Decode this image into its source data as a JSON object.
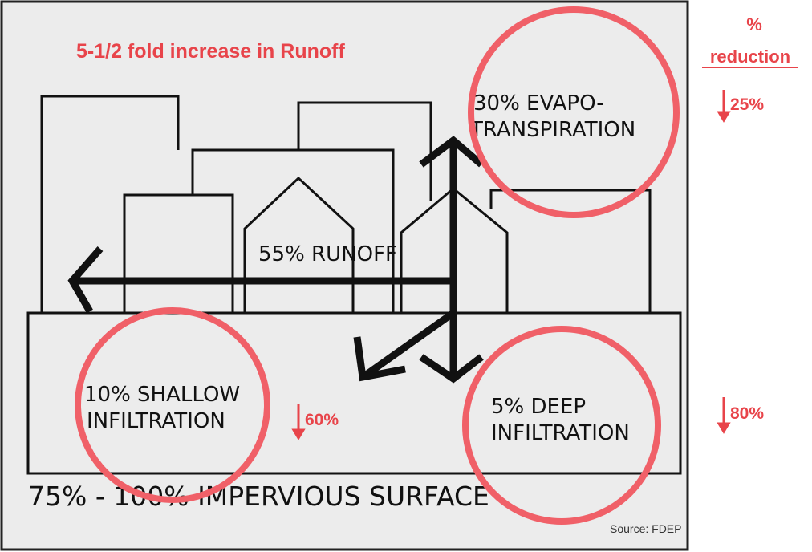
{
  "title": "5-1/2 fold increase in Runoff",
  "labels": {
    "evapotranspiration": [
      "30% EVAPO-",
      "TRANSPIRATION"
    ],
    "runoff": "55% RUNOFF",
    "shallow_infiltration": [
      "10% SHALLOW",
      "INFILTRATION"
    ],
    "deep_infiltration": [
      "5% DEEP",
      "INFILTRATION"
    ],
    "surface": "75% - 100% IMPERVIOUS SURFACE",
    "source": "Source: FDEP"
  },
  "reduction": {
    "header": [
      "%",
      "reduction"
    ],
    "evapotranspiration": "25%",
    "shallow_infiltration": "60%",
    "deep_infiltration": "80%"
  }
}
